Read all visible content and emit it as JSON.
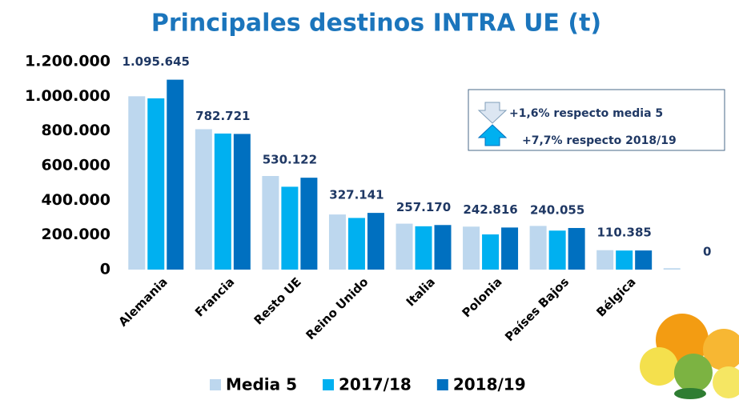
{
  "chart_data": {
    "type": "bar",
    "title": "Principales destinos INTRA UE (t)",
    "categories": [
      "Alemania",
      "Francia",
      "Resto UE",
      "Reino Unido",
      "Italia",
      "Polonia",
      "Países Bajos",
      "Bélgica",
      null
    ],
    "series": [
      {
        "name": "Media 5",
        "color": "#bdd7ee",
        "values": [
          1000000,
          810000,
          540000,
          318000,
          265000,
          248000,
          252000,
          112000,
          8000
        ]
      },
      {
        "name": "2017/18",
        "color": "#00b0f0",
        "values": [
          988000,
          785000,
          478000,
          298000,
          250000,
          203000,
          225000,
          110000,
          0
        ]
      },
      {
        "name": "2018/19",
        "color": "#0070c0",
        "values": [
          1095645,
          782721,
          530122,
          327141,
          257170,
          242816,
          240055,
          110385,
          0
        ],
        "value_labels": [
          "1.095.645",
          "782.721",
          "530.122",
          "327.141",
          "257.170",
          "242.816",
          "240.055",
          "110.385",
          "0"
        ]
      }
    ],
    "ylim": [
      0,
      1200000
    ],
    "yticks": [
      0,
      {
        "value": 200000,
        "label": "200.000"
      },
      {
        "value": 400000,
        "label": "400.000"
      },
      {
        "value": 600000,
        "label": "600.000"
      },
      {
        "value": 800000,
        "label": "800.000"
      },
      {
        "value": 1000000,
        "label": "1.000.000"
      },
      {
        "value": 1200000,
        "label": "1.200.000"
      }
    ],
    "grid": false,
    "annotations": [
      "+1,6% respecto media 5",
      "+7,7% respecto 2018/19"
    ]
  }
}
